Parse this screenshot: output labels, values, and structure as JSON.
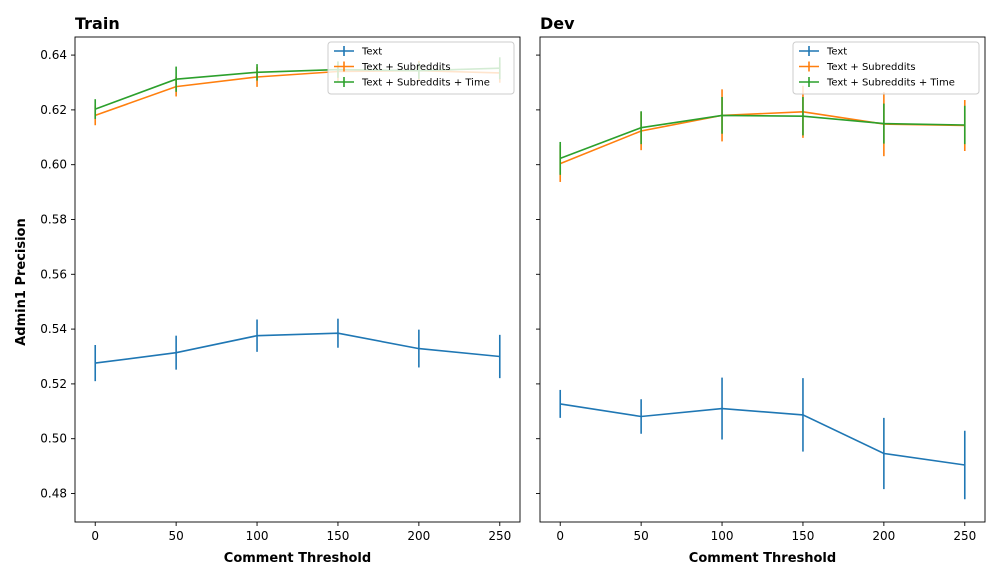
{
  "figure": {
    "ylabel": "Admin1 Precision"
  },
  "chart_data": [
    {
      "type": "line",
      "title": "Train",
      "xlabel": "Comment Threshold",
      "ylabel": "Admin1 Precision",
      "x": [
        0,
        50,
        100,
        150,
        200,
        250
      ],
      "xlim": [
        -12.5,
        262.5
      ],
      "ylim": [
        0.4696,
        0.6466
      ],
      "xticks": [
        0,
        50,
        100,
        150,
        200,
        250
      ],
      "yticks": [
        0.48,
        0.5,
        0.52,
        0.54,
        0.56,
        0.58,
        0.6,
        0.62,
        0.64
      ],
      "ytick_labels": [
        "0.48",
        "0.50",
        "0.52",
        "0.54",
        "0.56",
        "0.58",
        "0.60",
        "0.62",
        "0.64"
      ],
      "legend_position": "top-right",
      "grid": false,
      "series": [
        {
          "name": "Text",
          "color": "#1f77b4",
          "values": [
            0.5276,
            0.5314,
            0.5376,
            0.5385,
            0.5329,
            0.53
          ],
          "errors": [
            0.0066,
            0.0062,
            0.0059,
            0.0053,
            0.0069,
            0.0079
          ]
        },
        {
          "name": "Text + Subreddits",
          "color": "#ff7f0e",
          "values": [
            0.618,
            0.6285,
            0.632,
            0.634,
            0.6343,
            0.6335
          ],
          "errors": [
            0.0036,
            0.0036,
            0.0036,
            0.0036,
            0.0036,
            0.0036
          ]
        },
        {
          "name": "Text + Subreddits + Time",
          "color": "#2ca02c",
          "values": [
            0.6203,
            0.6312,
            0.6337,
            0.6347,
            0.6343,
            0.6352
          ],
          "errors": [
            0.0036,
            0.0046,
            0.003,
            0.003,
            0.003,
            0.004
          ]
        }
      ]
    },
    {
      "type": "line",
      "title": "Dev",
      "xlabel": "Comment Threshold",
      "x": [
        0,
        50,
        100,
        150,
        200,
        250
      ],
      "xlim": [
        -12.5,
        262.5
      ],
      "ylim": [
        0.4696,
        0.6466
      ],
      "xticks": [
        0,
        50,
        100,
        150,
        200,
        250
      ],
      "legend_position": "top-right",
      "grid": false,
      "series": [
        {
          "name": "Text",
          "color": "#1f77b4",
          "values": [
            0.5127,
            0.5081,
            0.511,
            0.5087,
            0.4946,
            0.4904
          ],
          "errors": [
            0.0051,
            0.0063,
            0.0113,
            0.0134,
            0.013,
            0.0125
          ]
        },
        {
          "name": "Text + Subreddits",
          "color": "#ff7f0e",
          "values": [
            0.6004,
            0.6123,
            0.618,
            0.6193,
            0.6148,
            0.6143
          ],
          "errors": [
            0.0067,
            0.007,
            0.0095,
            0.0095,
            0.0117,
            0.0093
          ]
        },
        {
          "name": "Text + Subreddits + Time",
          "color": "#2ca02c",
          "values": [
            0.6023,
            0.6135,
            0.618,
            0.6177,
            0.615,
            0.6145
          ],
          "errors": [
            0.006,
            0.006,
            0.0067,
            0.007,
            0.0073,
            0.007
          ]
        }
      ]
    }
  ]
}
